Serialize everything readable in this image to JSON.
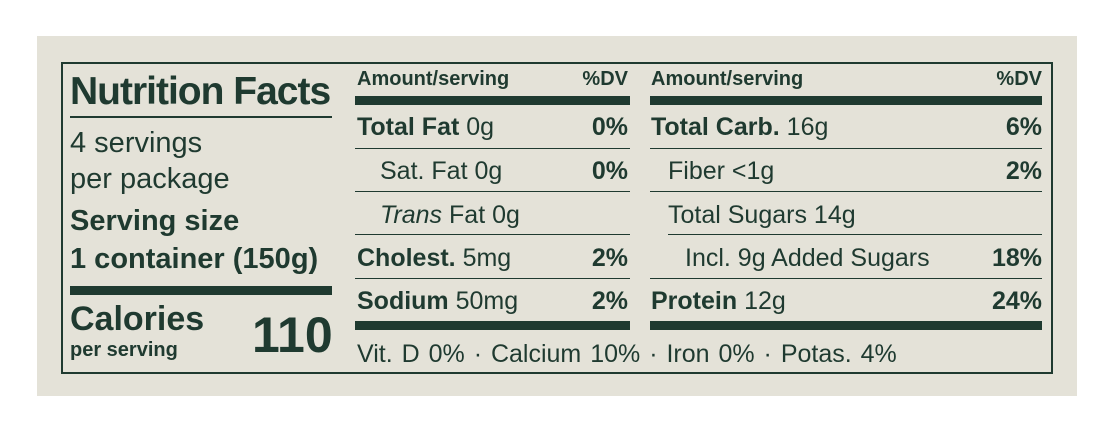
{
  "label": {
    "title": "Nutrition Facts",
    "servings_line1": "4 servings",
    "servings_line2": "per package",
    "serving_size_label": "Serving size",
    "serving_size_value": "1 container (150g)",
    "calories_label": "Calories",
    "calories_sublabel": "per serving",
    "calories_value": "110"
  },
  "left_table": {
    "header_amount": "Amount/serving",
    "header_dv": "%DV",
    "rows": [
      {
        "name": "Total Fat",
        "amount": "0g",
        "dv": "0%"
      },
      {
        "name": "Sat. Fat",
        "amount": "0g",
        "dv": "0%"
      },
      {
        "name_italic": "Trans",
        "name": "Fat",
        "amount": "0g",
        "dv": ""
      },
      {
        "name": "Cholest.",
        "amount": "5mg",
        "dv": "2%"
      },
      {
        "name": "Sodium",
        "amount": "50mg",
        "dv": "2%"
      }
    ]
  },
  "right_table": {
    "header_amount": "Amount/serving",
    "header_dv": "%DV",
    "rows": [
      {
        "name": "Total Carb.",
        "amount": "16g",
        "dv": "6%"
      },
      {
        "name": "Fiber",
        "amount": "<1g",
        "dv": "2%"
      },
      {
        "name": "Total Sugars",
        "amount": "14g",
        "dv": ""
      },
      {
        "name": "Incl. 9g Added Sugars",
        "amount": "",
        "dv": "18%"
      },
      {
        "name": "Protein",
        "amount": "12g",
        "dv": "24%"
      }
    ]
  },
  "footer": "Vit. D 0% · Calcium 10% · Iron 0% · Potas. 4%",
  "colors": {
    "ink": "#1f3a30",
    "background": "#e4e2d8"
  }
}
